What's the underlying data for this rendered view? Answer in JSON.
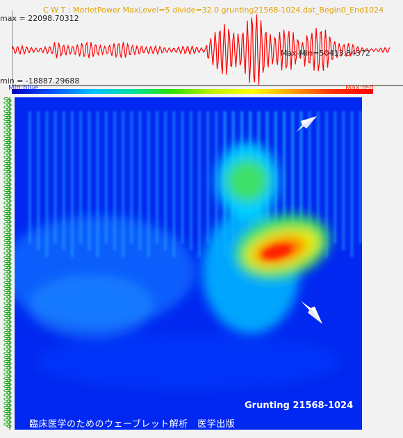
{
  "header": {
    "title": "C W T : MorletPower MaxLevel=5 divide=32.0 grunting21568-1024.dat_Begin0_End1024",
    "max_label": "max = 22098.70312",
    "min_label": "min = -18887.29688",
    "maxmin_label": "Max-Min=50413.84372"
  },
  "colorbar": {
    "min_label": "Min:blue",
    "max_label": "Max:red",
    "colors": [
      "#0000c0",
      "#0050ff",
      "#00c0ff",
      "#00e0a0",
      "#30e000",
      "#c0f000",
      "#ffff00",
      "#ffa000",
      "#ff3000",
      "#ff0000"
    ]
  },
  "signal": {
    "color": "#ff0000"
  },
  "scalogram": {
    "background": "#0028f0",
    "arrow_color": "#ffffff",
    "rail_color": "#00a000"
  },
  "captions": {
    "title": "Grunting 21568-1024",
    "book": "臨床医学のためのウェーブレット解析　医学出版"
  }
}
